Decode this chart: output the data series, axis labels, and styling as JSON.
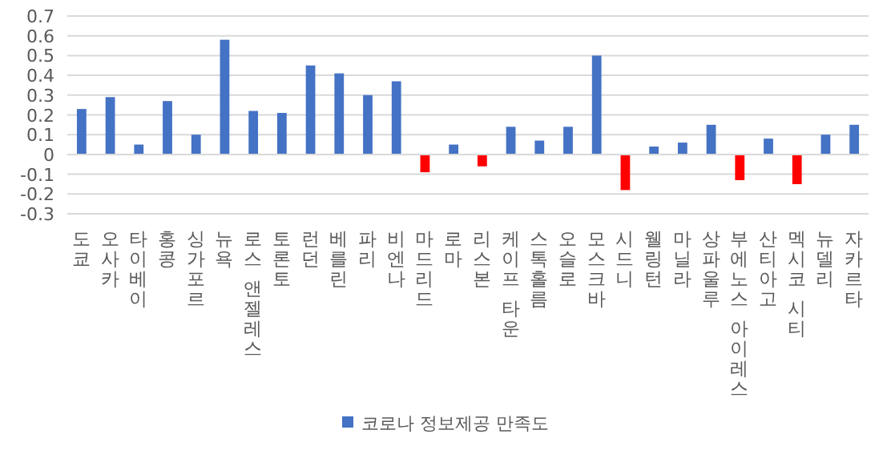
{
  "chart_data": {
    "type": "bar",
    "categories": [
      "도쿄",
      "오사카",
      "타이베이",
      "홍콩",
      "싱가포르",
      "뉴욕",
      "로스 앤젤레스",
      "토론토",
      "런던",
      "베를린",
      "파리",
      "비엔나",
      "마드리드",
      "로마",
      "리스본",
      "케이프 타운",
      "스톡홀름",
      "오슬로",
      "모스크바",
      "시드니",
      "웰링턴",
      "마닐라",
      "상파울루",
      "부에노스 아이레스",
      "산티아고",
      "멕시코 시티",
      "뉴델리",
      "자카르타"
    ],
    "series": [
      {
        "name": "코로나 정보제공 만족도",
        "color": "#4472c4",
        "colors": [
          "#4472c4",
          "#4472c4",
          "#4472c4",
          "#4472c4",
          "#4472c4",
          "#4472c4",
          "#4472c4",
          "#4472c4",
          "#4472c4",
          "#4472c4",
          "#4472c4",
          "#4472c4",
          "#ff0000",
          "#4472c4",
          "#ff0000",
          "#4472c4",
          "#4472c4",
          "#4472c4",
          "#4472c4",
          "#ff0000",
          "#4472c4",
          "#4472c4",
          "#4472c4",
          "#ff0000",
          "#4472c4",
          "#ff0000",
          "#4472c4",
          "#4472c4"
        ],
        "values": [
          0.23,
          0.29,
          0.05,
          0.27,
          0.1,
          0.58,
          0.22,
          0.21,
          0.45,
          0.41,
          0.3,
          0.37,
          -0.09,
          0.05,
          -0.06,
          0.14,
          0.07,
          0.14,
          0.5,
          -0.18,
          0.04,
          0.06,
          0.15,
          -0.13,
          0.08,
          -0.15,
          0.1,
          0.15
        ]
      }
    ],
    "ylim": [
      -0.3,
      0.7
    ],
    "yticks": [
      -0.3,
      -0.2,
      -0.1,
      0,
      0.1,
      0.2,
      0.3,
      0.4,
      0.5,
      0.6,
      0.7
    ],
    "grid": "y",
    "legend": "bottom"
  }
}
